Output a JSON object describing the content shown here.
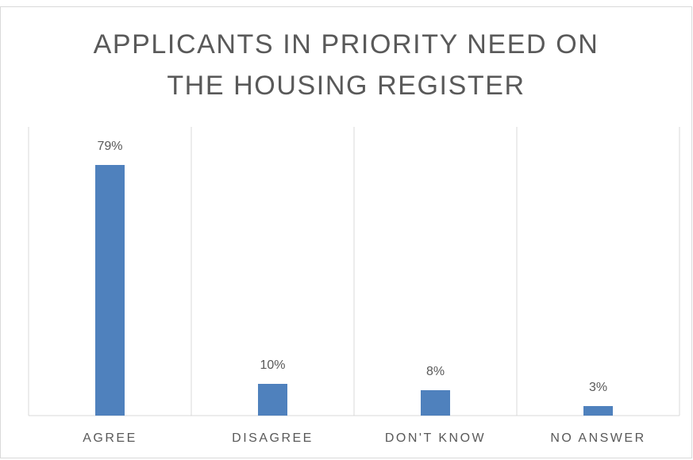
{
  "chart_data": {
    "type": "bar",
    "title": "APPLICANTS IN PRIORITY NEED ON THE HOUSING REGISTER",
    "categories": [
      "AGREE",
      "DISAGREE",
      "DON'T KNOW",
      "NO ANSWER"
    ],
    "values": [
      79,
      10,
      8,
      3
    ],
    "value_labels": [
      "79%",
      "10%",
      "8%",
      "3%"
    ],
    "color": "#4f81bd"
  }
}
